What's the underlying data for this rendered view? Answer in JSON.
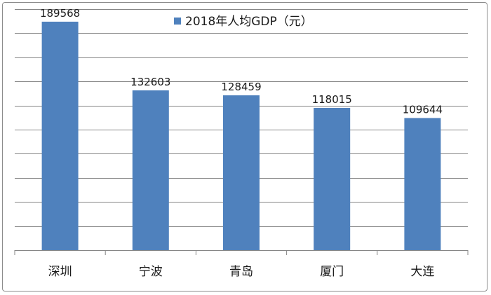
{
  "chart_data": {
    "type": "bar",
    "categories": [
      "深圳",
      "宁波",
      "青岛",
      "厦门",
      "大连"
    ],
    "series": [
      {
        "name": "2018年人均GDP（元）",
        "values": [
          189568,
          132603,
          128459,
          118015,
          109644
        ],
        "color": "#4f81bd"
      }
    ],
    "data_labels": [
      "189568",
      "132603",
      "128459",
      "118015",
      "109644"
    ],
    "ylim": [
      0,
      200000
    ],
    "y_gridline_step": 20000,
    "grid": true,
    "gridline_color": "#868686",
    "legend_position": "top-center",
    "xlabel": "",
    "ylabel": ""
  }
}
